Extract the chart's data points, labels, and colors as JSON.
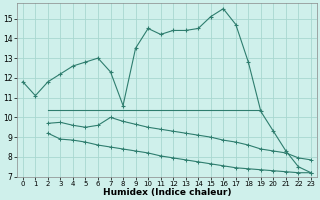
{
  "xlabel": "Humidex (Indice chaleur)",
  "bg_color": "#cff0eb",
  "grid_color": "#a8d8d0",
  "line_color": "#2e7d6e",
  "line1_x": [
    0,
    1,
    2,
    3,
    4,
    5,
    6,
    7,
    8,
    9,
    10,
    11,
    12,
    13,
    14,
    15,
    16,
    17,
    18,
    19,
    20,
    21,
    22,
    23
  ],
  "line1_y": [
    11.8,
    11.1,
    11.8,
    12.2,
    12.6,
    12.8,
    13.0,
    12.3,
    10.6,
    13.5,
    14.5,
    14.2,
    14.4,
    14.4,
    14.5,
    15.1,
    15.5,
    14.7,
    12.8,
    10.3,
    9.3,
    8.3,
    7.5,
    7.2
  ],
  "line2_x": [
    2,
    3,
    4,
    5,
    6,
    7,
    8,
    9,
    10,
    11,
    12,
    13,
    14,
    15,
    16,
    17,
    18,
    19
  ],
  "line2_y": [
    10.35,
    10.35,
    10.35,
    10.35,
    10.35,
    10.35,
    10.35,
    10.35,
    10.35,
    10.35,
    10.35,
    10.35,
    10.35,
    10.35,
    10.35,
    10.35,
    10.35,
    10.35
  ],
  "line3_x": [
    2,
    3,
    4,
    5,
    6,
    7,
    8,
    9,
    10,
    11,
    12,
    13,
    14,
    15,
    16,
    17,
    18,
    19,
    20,
    21,
    22,
    23
  ],
  "line3_y": [
    9.7,
    9.75,
    9.6,
    9.5,
    9.6,
    10.0,
    9.8,
    9.65,
    9.5,
    9.4,
    9.3,
    9.2,
    9.1,
    9.0,
    8.85,
    8.75,
    8.6,
    8.4,
    8.3,
    8.2,
    7.95,
    7.85
  ],
  "line4_x": [
    2,
    3,
    4,
    5,
    6,
    7,
    8,
    9,
    10,
    11,
    12,
    13,
    14,
    15,
    16,
    17,
    18,
    19,
    20,
    21,
    22,
    23
  ],
  "line4_y": [
    9.2,
    8.9,
    8.85,
    8.75,
    8.6,
    8.5,
    8.4,
    8.3,
    8.2,
    8.05,
    7.95,
    7.85,
    7.75,
    7.65,
    7.55,
    7.45,
    7.4,
    7.35,
    7.3,
    7.25,
    7.2,
    7.2
  ],
  "ylim": [
    7,
    15.8
  ],
  "xlim": [
    -0.5,
    23.5
  ],
  "yticks": [
    7,
    8,
    9,
    10,
    11,
    12,
    13,
    14,
    15
  ],
  "xticks": [
    0,
    1,
    2,
    3,
    4,
    5,
    6,
    7,
    8,
    9,
    10,
    11,
    12,
    13,
    14,
    15,
    16,
    17,
    18,
    19,
    20,
    21,
    22,
    23
  ]
}
